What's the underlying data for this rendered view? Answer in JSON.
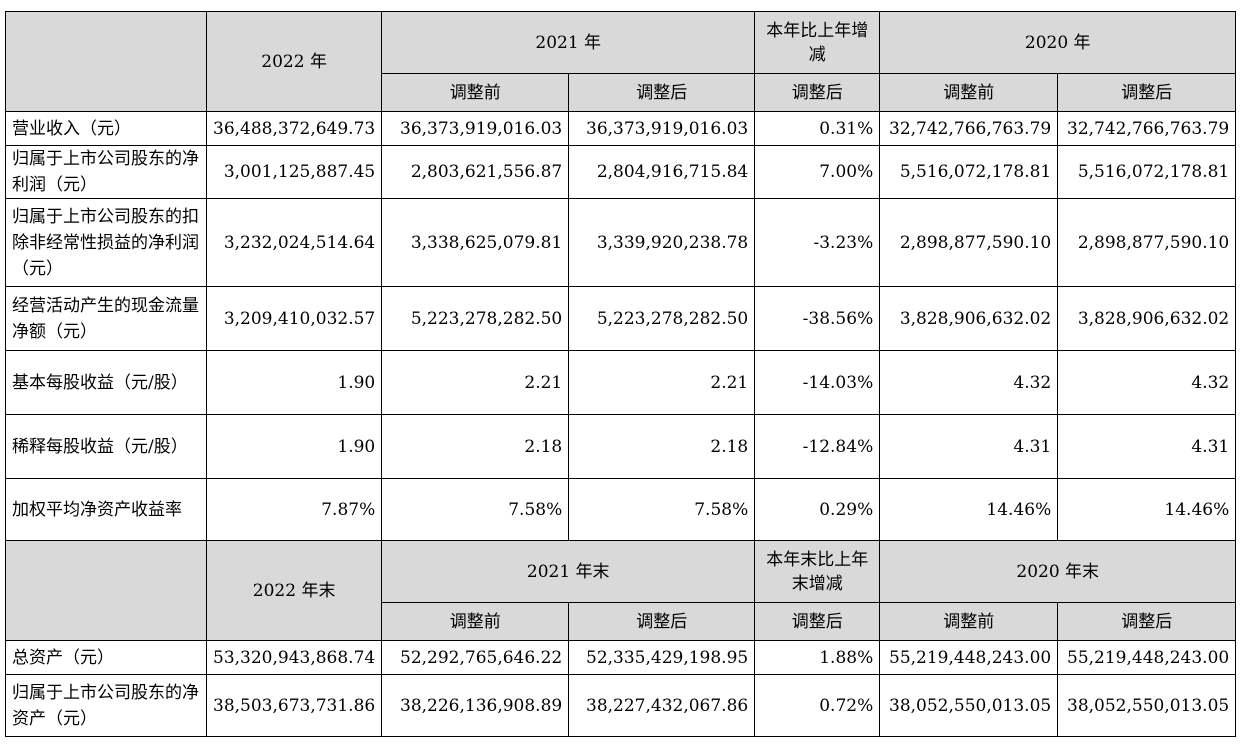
{
  "header1": {
    "y2022": "2022 年",
    "y2021": "2021 年",
    "change": "本年比上年增减",
    "y2020": "2020 年",
    "sub": [
      "调整前",
      "调整后",
      "调整后",
      "调整前",
      "调整后"
    ]
  },
  "rows1": [
    {
      "label": "营业收入（元）",
      "values": [
        "36,488,372,649.73",
        "36,373,919,016.03",
        "36,373,919,016.03",
        "0.31%",
        "32,742,766,763.79",
        "32,742,766,763.79"
      ]
    },
    {
      "label": "归属于上市公司股东的净利润（元）",
      "values": [
        "3,001,125,887.45",
        "2,803,621,556.87",
        "2,804,916,715.84",
        "7.00%",
        "5,516,072,178.81",
        "5,516,072,178.81"
      ]
    },
    {
      "label": "归属于上市公司股东的扣除非经常性损益的净利润（元）",
      "values": [
        "3,232,024,514.64",
        "3,338,625,079.81",
        "3,339,920,238.78",
        "-3.23%",
        "2,898,877,590.10",
        "2,898,877,590.10"
      ]
    },
    {
      "label": "经营活动产生的现金流量净额（元）",
      "values": [
        "3,209,410,032.57",
        "5,223,278,282.50",
        "5,223,278,282.50",
        "-38.56%",
        "3,828,906,632.02",
        "3,828,906,632.02"
      ]
    },
    {
      "label": "基本每股收益（元/股）",
      "values": [
        "1.90",
        "2.21",
        "2.21",
        "-14.03%",
        "4.32",
        "4.32"
      ]
    },
    {
      "label": "稀释每股收益（元/股）",
      "values": [
        "1.90",
        "2.18",
        "2.18",
        "-12.84%",
        "4.31",
        "4.31"
      ]
    },
    {
      "label": "加权平均净资产收益率",
      "values": [
        "7.87%",
        "7.58%",
        "7.58%",
        "0.29%",
        "14.46%",
        "14.46%"
      ]
    }
  ],
  "header2": {
    "y2022": "2022 年末",
    "y2021": "2021 年末",
    "change": "本年末比上年末增减",
    "y2020": "2020 年末",
    "sub": [
      "调整前",
      "调整后",
      "调整后",
      "调整前",
      "调整后"
    ]
  },
  "rows2": [
    {
      "label": "总资产（元）",
      "values": [
        "53,320,943,868.74",
        "52,292,765,646.22",
        "52,335,429,198.95",
        "1.88%",
        "55,219,448,243.00",
        "55,219,448,243.00"
      ]
    },
    {
      "label": "归属于上市公司股东的净资产（元）",
      "values": [
        "38,503,673,731.86",
        "38,226,136,908.89",
        "38,227,432,067.86",
        "0.72%",
        "38,052,550,013.05",
        "38,052,550,013.05"
      ]
    }
  ]
}
